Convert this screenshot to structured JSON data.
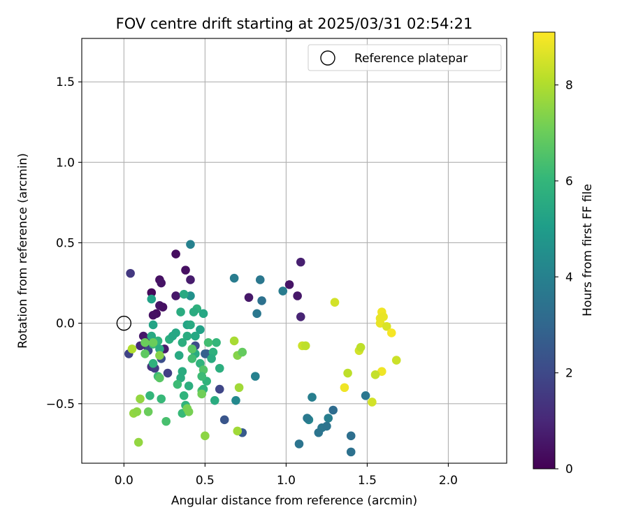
{
  "chart_data": {
    "type": "scatter",
    "title": "FOV centre drift starting at 2025/03/31 02:54:21",
    "xlabel": "Angular distance from reference (arcmin)",
    "ylabel": "Rotation from reference (arcmin)",
    "xlim": [
      -0.26,
      2.36
    ],
    "ylim": [
      -0.87,
      1.77
    ],
    "xticks": [
      0.0,
      0.5,
      1.0,
      1.5,
      2.0
    ],
    "xtick_labels": [
      "0.0",
      "0.5",
      "1.0",
      "1.5",
      "2.0"
    ],
    "yticks": [
      -0.5,
      0.0,
      0.5,
      1.0,
      1.5
    ],
    "ytick_labels": [
      "−0.5",
      "0.0",
      "0.5",
      "1.0",
      "1.5"
    ],
    "grid": true,
    "legend": {
      "position": "top-right",
      "entries": [
        "Reference platepar"
      ]
    },
    "colorbar": {
      "label": "Hours from first FF file",
      "colormap": "viridis",
      "range": [
        0,
        9.1
      ],
      "ticks": [
        0,
        2,
        4,
        6,
        8
      ],
      "tick_labels": [
        "0",
        "2",
        "4",
        "6",
        "8"
      ]
    },
    "reference_point": {
      "name": "Reference platepar",
      "x": 0.0,
      "y": 0.0
    },
    "series": [
      {
        "color_values": [
          0.3,
          0.4,
          0.7,
          0.2,
          0.4,
          0.5,
          0.6,
          0.3,
          0.5,
          0.4,
          0.8,
          0.6,
          0.5,
          0.9,
          0.6,
          0.4,
          0.6,
          0.7,
          0.8,
          0.8,
          1.1,
          1.3,
          1.5,
          1.6,
          1.8,
          2.2,
          1.7,
          2.0,
          2.4,
          2.6,
          1.9,
          2.1,
          2.4,
          2.8,
          3.8,
          3.6,
          3.4,
          3.6,
          3.8,
          4.0,
          4.3,
          3.5,
          3.9,
          4.1,
          3.7,
          3.6,
          3.5,
          3.9,
          3.5,
          3.2,
          3.3,
          3.4,
          3.6,
          4.0,
          4.6,
          5.2,
          5.5,
          5.8,
          5.6,
          5.4,
          5.6,
          5.3,
          5.5,
          5.2,
          5.4,
          6.0,
          5.8,
          5.7,
          5.3,
          5.6,
          5.5,
          5.9,
          5.4,
          5.7,
          5.5,
          6.1,
          5.9,
          5.4,
          6.0,
          5.6,
          5.6,
          5.7,
          5.6,
          5.9,
          6.3,
          6.6,
          5.6,
          6.2,
          5.6,
          5.7,
          6.2,
          6.5,
          5.8,
          5.9,
          5.6,
          6.2,
          5.9,
          6.1,
          6.8,
          6.7,
          7.0,
          5.9,
          6.4,
          6.1,
          7.2,
          7.0,
          7.4,
          6.9,
          6.3,
          6.7,
          7.4,
          7.2,
          7.0,
          7.1,
          7.5,
          7.8,
          7.9,
          7.8,
          7.6,
          7.6,
          7.5,
          7.6,
          8.0,
          8.4,
          8.2,
          8.5,
          8.5,
          8.2,
          8.2,
          8.9,
          8.9,
          8.9,
          8.8,
          8.8,
          8.6,
          9.0,
          8.8,
          8.5,
          8.3,
          8.4
        ],
        "x": [
          0.32,
          0.38,
          0.41,
          0.17,
          0.22,
          0.23,
          0.32,
          0.2,
          0.22,
          0.18,
          1.09,
          1.07,
          1.02,
          1.09,
          0.77,
          0.24,
          0.12,
          0.25,
          0.15,
          0.14,
          0.1,
          0.17,
          0.04,
          0.19,
          0.03,
          0.23,
          0.27,
          0.15,
          0.62,
          0.73,
          0.59,
          0.44,
          0.51,
          0.5,
          0.68,
          0.84,
          0.85,
          0.82,
          0.98,
          0.81,
          0.69,
          1.08,
          1.16,
          1.14,
          1.13,
          1.22,
          1.2,
          1.26,
          1.25,
          1.29,
          1.4,
          1.4,
          1.49,
          0.41,
          0.41,
          0.17,
          0.37,
          0.45,
          0.43,
          0.49,
          0.35,
          0.39,
          0.41,
          0.47,
          0.44,
          0.57,
          0.55,
          0.36,
          0.18,
          0.39,
          0.17,
          0.21,
          0.32,
          0.28,
          0.34,
          0.18,
          0.47,
          0.3,
          0.16,
          0.36,
          0.44,
          0.59,
          0.54,
          0.51,
          0.42,
          0.49,
          0.22,
          0.21,
          0.35,
          0.4,
          0.48,
          0.48,
          0.18,
          0.38,
          0.56,
          0.33,
          0.37,
          0.23,
          0.13,
          0.22,
          0.18,
          0.49,
          0.26,
          0.36,
          0.39,
          0.15,
          0.7,
          0.73,
          0.52,
          0.42,
          0.22,
          0.4,
          0.13,
          0.48,
          0.5,
          0.71,
          0.68,
          0.7,
          0.09,
          0.06,
          0.08,
          0.1,
          0.05,
          1.1,
          1.12,
          1.3,
          1.45,
          1.46,
          1.38,
          1.36,
          1.59,
          1.59,
          1.6,
          1.58,
          1.62,
          1.65,
          1.58,
          1.53,
          1.55,
          1.68
        ],
        "y": [
          0.43,
          0.33,
          0.27,
          0.19,
          0.27,
          0.25,
          0.17,
          0.06,
          0.11,
          0.05,
          0.38,
          0.17,
          0.24,
          0.04,
          0.16,
          0.1,
          -0.08,
          -0.16,
          -0.11,
          -0.14,
          -0.14,
          -0.27,
          0.31,
          -0.28,
          -0.19,
          -0.22,
          -0.31,
          -0.17,
          -0.6,
          -0.68,
          -0.41,
          -0.14,
          -0.19,
          -0.19,
          0.28,
          0.27,
          0.14,
          0.06,
          0.2,
          -0.33,
          -0.48,
          -0.75,
          -0.46,
          -0.6,
          -0.59,
          -0.65,
          -0.68,
          -0.59,
          -0.64,
          -0.54,
          -0.7,
          -0.8,
          -0.45,
          0.49,
          0.17,
          0.15,
          0.18,
          0.09,
          0.07,
          0.06,
          0.07,
          -0.01,
          -0.01,
          -0.04,
          -0.08,
          -0.12,
          -0.18,
          -0.12,
          -0.01,
          -0.08,
          -0.08,
          -0.11,
          -0.06,
          -0.1,
          -0.2,
          -0.13,
          -0.25,
          -0.08,
          -0.45,
          -0.3,
          -0.19,
          -0.28,
          -0.22,
          -0.36,
          -0.22,
          -0.29,
          -0.16,
          -0.33,
          -0.34,
          -0.39,
          -0.33,
          -0.42,
          -0.25,
          -0.51,
          -0.48,
          -0.38,
          -0.45,
          -0.47,
          -0.19,
          -0.34,
          -0.12,
          -0.41,
          -0.61,
          -0.56,
          -0.53,
          -0.55,
          -0.2,
          -0.18,
          -0.12,
          -0.16,
          -0.2,
          -0.55,
          -0.12,
          -0.44,
          -0.7,
          -0.4,
          -0.11,
          -0.67,
          -0.74,
          -0.56,
          -0.55,
          -0.47,
          -0.16,
          -0.14,
          -0.14,
          0.13,
          -0.17,
          -0.15,
          -0.31,
          -0.4,
          0.07,
          -0.3,
          0.04,
          0.0,
          -0.02,
          -0.06,
          0.03,
          -0.49,
          -0.32,
          -0.23
        ]
      }
    ]
  }
}
